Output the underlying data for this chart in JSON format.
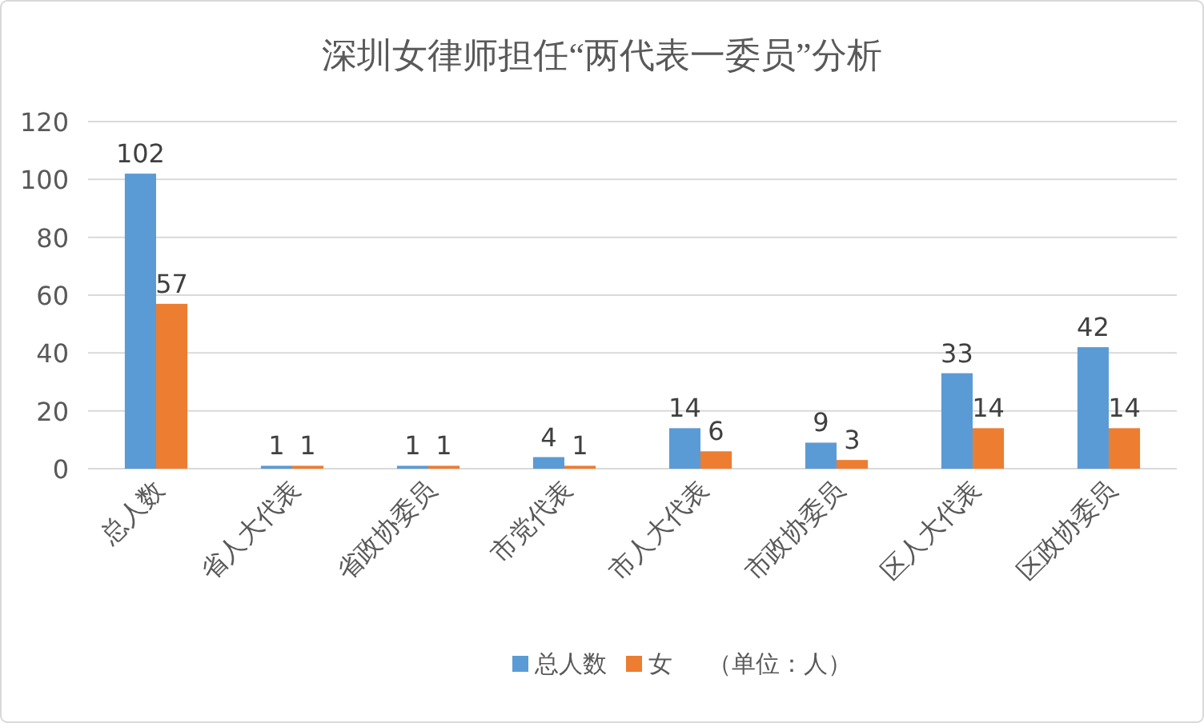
{
  "chart_data": {
    "type": "bar",
    "title": "深圳女律师担任“两代表一委员”分析",
    "categories": [
      "总人数",
      "省人大代表",
      "省政协委员",
      "市党代表",
      "市人大代表",
      "市政协委员",
      "区人大代表",
      "区政协委员"
    ],
    "series": [
      {
        "name": "总人数",
        "color": "#5b9bd5",
        "values": [
          102,
          1,
          1,
          4,
          14,
          9,
          33,
          42
        ]
      },
      {
        "name": "女",
        "color": "#ed7d31",
        "values": [
          57,
          1,
          1,
          1,
          6,
          3,
          14,
          14
        ]
      }
    ],
    "ylim": [
      0,
      120
    ],
    "yticks": [
      0,
      20,
      40,
      60,
      80,
      100,
      120
    ],
    "grid": "y",
    "legend": "bottom",
    "data_labels": true,
    "annotations": [
      "（单位：人）"
    ]
  }
}
